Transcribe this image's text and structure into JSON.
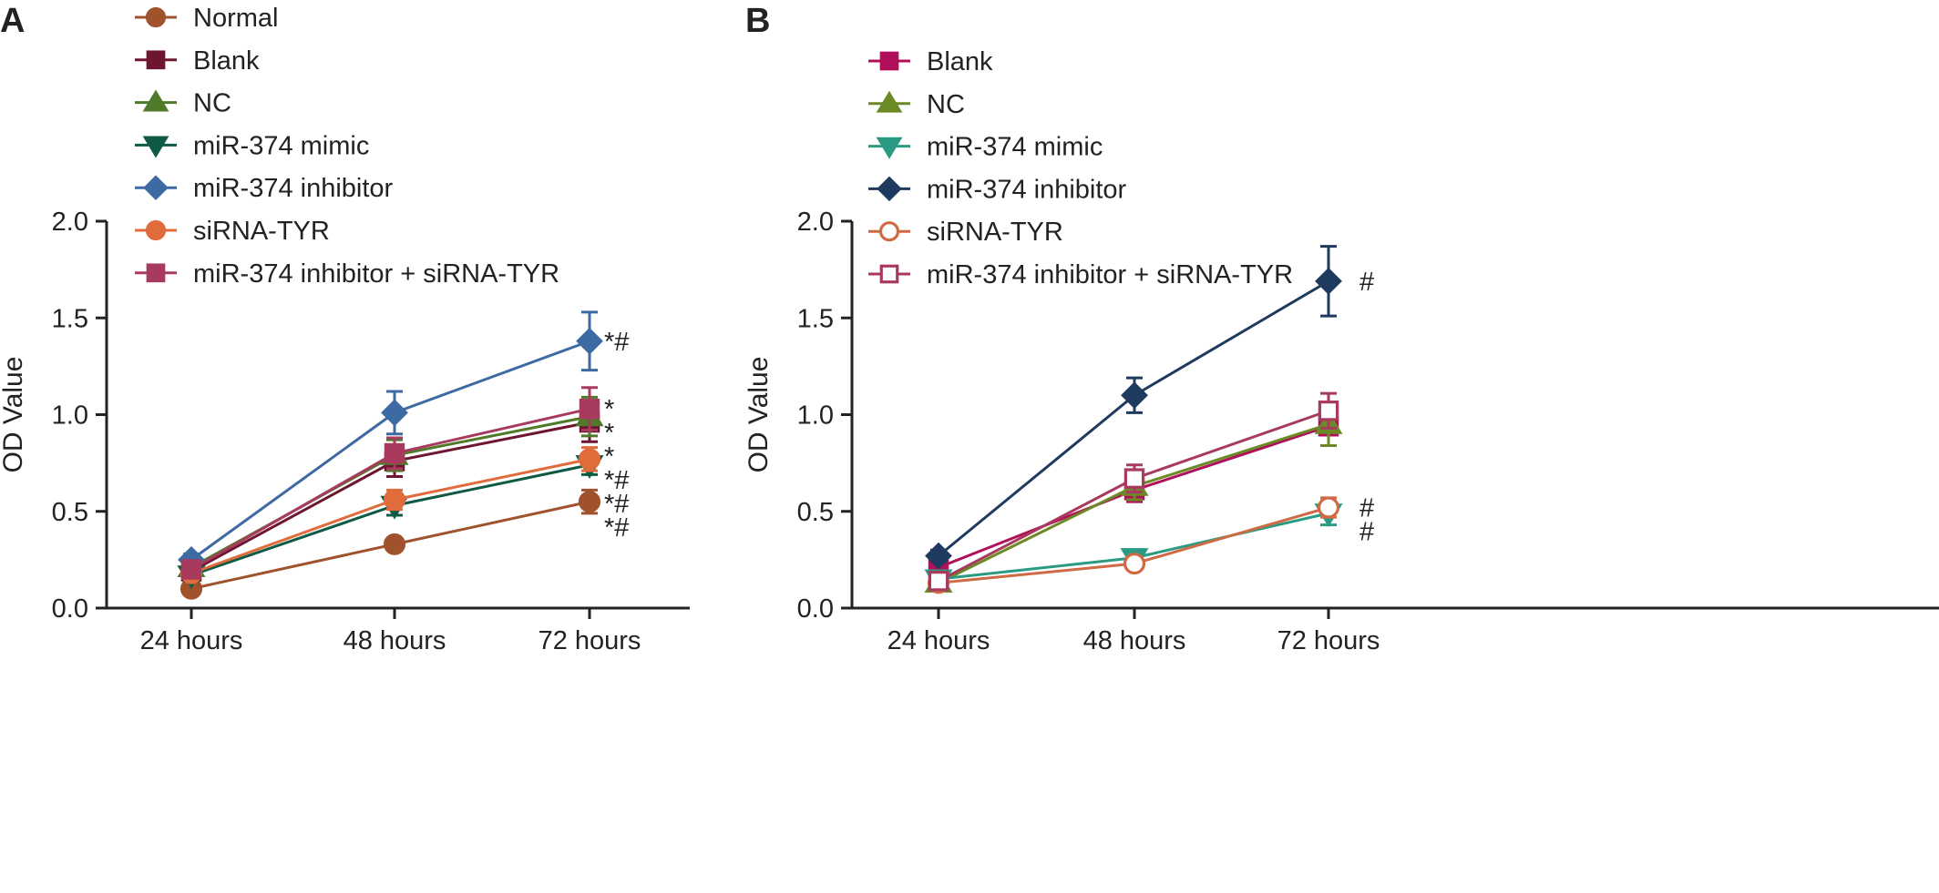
{
  "chart_data": [
    {
      "panel": "A",
      "type": "line",
      "ylabel": "OD Value",
      "xlabel": "",
      "categories": [
        "24 hours",
        "48 hours",
        "72 hours"
      ],
      "ylim": [
        0.0,
        2.0
      ],
      "yticks": [
        "0.0",
        "0.5",
        "1.0",
        "1.5",
        "2.0"
      ],
      "legend_placement": "top-left",
      "series": [
        {
          "name": "Normal",
          "color": "#a0522d",
          "marker": "circle",
          "filled": true,
          "values": [
            0.1,
            0.33,
            0.55
          ],
          "errors": [
            0.02,
            0.03,
            0.06
          ],
          "labels": [
            "",
            "",
            "*#"
          ]
        },
        {
          "name": "Blank",
          "color": "#6e1630",
          "marker": "square",
          "filled": true,
          "values": [
            0.19,
            0.76,
            0.96
          ],
          "errors": [
            0.04,
            0.08,
            0.1
          ],
          "labels": [
            "",
            "",
            "*"
          ]
        },
        {
          "name": "NC",
          "color": "#4e7a2a",
          "marker": "triangle-up",
          "filled": true,
          "values": [
            0.21,
            0.79,
            0.99
          ],
          "errors": [
            0.04,
            0.08,
            0.1
          ],
          "labels": [
            "",
            "",
            "*"
          ]
        },
        {
          "name": "miR-374 mimic",
          "color": "#0f5a45",
          "marker": "triangle-down",
          "filled": true,
          "values": [
            0.17,
            0.53,
            0.74
          ],
          "errors": [
            0.03,
            0.05,
            0.05
          ],
          "labels": [
            "",
            "",
            "*#"
          ]
        },
        {
          "name": "miR-374 inhibitor",
          "color": "#3e6aa3",
          "marker": "diamond",
          "filled": true,
          "values": [
            0.25,
            1.01,
            1.38
          ],
          "errors": [
            0.03,
            0.11,
            0.15
          ],
          "labels": [
            "",
            "",
            "*#"
          ]
        },
        {
          "name": "siRNA-TYR",
          "color": "#e06c3c",
          "marker": "circle",
          "filled": true,
          "values": [
            0.18,
            0.56,
            0.77
          ],
          "errors": [
            0.03,
            0.05,
            0.06
          ],
          "labels": [
            "",
            "",
            "*#"
          ]
        },
        {
          "name": "miR-374 inhibitor + siRNA-TYR",
          "color": "#a83a5e",
          "marker": "square",
          "filled": true,
          "values": [
            0.2,
            0.8,
            1.03
          ],
          "errors": [
            0.04,
            0.08,
            0.11
          ],
          "labels": [
            "",
            "",
            "*"
          ]
        }
      ]
    },
    {
      "panel": "B",
      "type": "line",
      "ylabel": "OD Value",
      "xlabel": "",
      "categories": [
        "24 hours",
        "48 hours",
        "72 hours"
      ],
      "ylim": [
        0.0,
        2.0
      ],
      "yticks": [
        "0.0",
        "0.5",
        "1.0",
        "1.5",
        "2.0"
      ],
      "legend_placement": "top-left",
      "series": [
        {
          "name": "Blank",
          "color": "#b0105a",
          "marker": "square",
          "filled": true,
          "values": [
            0.21,
            0.61,
            0.94
          ],
          "errors": [
            0.04,
            0.06,
            0.1
          ],
          "labels": [
            "",
            "",
            ""
          ]
        },
        {
          "name": "NC",
          "color": "#6b8a25",
          "marker": "triangle-up",
          "filled": true,
          "values": [
            0.13,
            0.63,
            0.95
          ],
          "errors": [
            0.03,
            0.07,
            0.11
          ],
          "labels": [
            "",
            "",
            ""
          ]
        },
        {
          "name": "miR-374 mimic",
          "color": "#2a9a82",
          "marker": "triangle-down",
          "filled": true,
          "values": [
            0.15,
            0.26,
            0.49
          ],
          "errors": [
            0.03,
            0.03,
            0.06
          ],
          "labels": [
            "",
            "",
            "#"
          ]
        },
        {
          "name": "miR-374 inhibitor",
          "color": "#1f3a5f",
          "marker": "diamond",
          "filled": true,
          "values": [
            0.27,
            1.1,
            1.69
          ],
          "errors": [
            0.03,
            0.09,
            0.18
          ],
          "labels": [
            "",
            "",
            "#"
          ]
        },
        {
          "name": "siRNA-TYR",
          "color": "#d06a45",
          "marker": "circle",
          "filled": false,
          "values": [
            0.13,
            0.23,
            0.52
          ],
          "errors": [
            0.02,
            0.03,
            0.05
          ],
          "labels": [
            "",
            "",
            "#"
          ]
        },
        {
          "name": "miR-374 inhibitor + siRNA-TYR",
          "color": "#a83a5e",
          "marker": "square",
          "filled": false,
          "values": [
            0.14,
            0.67,
            1.02
          ],
          "errors": [
            0.03,
            0.07,
            0.09
          ],
          "labels": [
            "",
            "",
            ""
          ]
        }
      ]
    }
  ]
}
